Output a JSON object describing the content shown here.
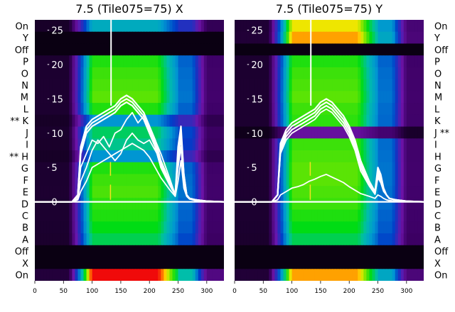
{
  "chart_data": [
    {
      "type": "heatmap",
      "title": "7.5 (Tile075=75) X",
      "rows_top_to_bottom": [
        {
          "label": "On",
          "level": 0.55
        },
        {
          "label": "Y",
          "level": 0.0
        },
        {
          "label": "Off",
          "level": 0.0
        },
        {
          "label": "P",
          "level": 0.72
        },
        {
          "label": "O",
          "level": 0.74
        },
        {
          "label": "N",
          "level": 0.75
        },
        {
          "label": "M",
          "level": 0.76
        },
        {
          "label": "L",
          "level": 0.72
        },
        {
          "label": "** K",
          "level": 0.5
        },
        {
          "label": "J",
          "level": 0.65
        },
        {
          "label": "I",
          "level": 0.62
        },
        {
          "label": "** H",
          "level": 0.5
        },
        {
          "label": "G",
          "level": 0.72
        },
        {
          "label": "F",
          "level": 0.74
        },
        {
          "label": "E",
          "level": 0.75
        },
        {
          "label": "D",
          "level": 0.73
        },
        {
          "label": "C",
          "level": 0.72
        },
        {
          "label": "B",
          "level": 0.7
        },
        {
          "label": "A",
          "level": 0.66
        },
        {
          "label": "Off",
          "level": 0.0
        },
        {
          "label": "X",
          "level": 0.0
        },
        {
          "label": "On",
          "level": 1.0
        }
      ],
      "x_ticks": [
        0,
        50,
        100,
        150,
        200,
        250,
        300
      ],
      "xlim": [
        0,
        330
      ],
      "y_ticks": [
        0,
        5,
        10,
        15,
        20,
        25
      ],
      "ylim": [
        -11.5,
        26.5
      ],
      "series": [
        {
          "x": [
            0,
            65,
            75,
            80,
            90,
            100,
            110,
            120,
            130,
            140,
            150,
            160,
            170,
            180,
            190,
            200,
            210,
            220,
            235,
            245,
            250,
            255,
            260,
            265,
            270,
            280,
            300,
            330
          ],
          "y": [
            0,
            0,
            1,
            8,
            11,
            12,
            12.5,
            13,
            13.5,
            14,
            15,
            15.5,
            15,
            14,
            13,
            11,
            9,
            6,
            3,
            1,
            8,
            11,
            4,
            1,
            0.5,
            0.3,
            0.1,
            0
          ]
        },
        {
          "x": [
            0,
            65,
            75,
            80,
            90,
            100,
            110,
            120,
            130,
            140,
            150,
            160,
            170,
            180,
            190,
            200,
            210,
            220,
            235,
            245,
            250,
            255,
            260,
            265,
            270,
            280,
            300,
            330
          ],
          "y": [
            0,
            0,
            1,
            7.5,
            10.5,
            11.5,
            12,
            12.5,
            13,
            13.5,
            14.5,
            15,
            14.5,
            13.5,
            12.5,
            10.5,
            8.5,
            5.5,
            2.8,
            1,
            7,
            10,
            4,
            1,
            0.5,
            0.3,
            0.1,
            0
          ]
        },
        {
          "x": [
            0,
            65,
            75,
            80,
            90,
            100,
            110,
            120,
            130,
            140,
            150,
            160,
            170,
            180,
            190,
            200,
            210,
            220,
            235,
            245,
            250,
            255,
            260,
            265,
            270,
            280,
            300,
            330
          ],
          "y": [
            0,
            0,
            1,
            7,
            10,
            11,
            11.5,
            12,
            12.5,
            13,
            14,
            14.5,
            14,
            13,
            12,
            10,
            8,
            5,
            2.5,
            1,
            6,
            9.5,
            3.5,
            1,
            0.5,
            0.3,
            0.1,
            0
          ]
        },
        {
          "x": [
            0,
            65,
            75,
            80,
            90,
            100,
            110,
            120,
            130,
            140,
            150,
            160,
            170,
            180,
            190,
            200,
            210,
            220,
            235,
            245,
            250,
            255,
            260,
            265,
            270,
            280,
            300,
            330
          ],
          "y": [
            0,
            0,
            0.8,
            5,
            7,
            9,
            8.5,
            9.5,
            8,
            10,
            10.5,
            12,
            13,
            11.5,
            12.5,
            11,
            9,
            7,
            3.5,
            1,
            7,
            10,
            3,
            1,
            0.5,
            0.3,
            0.1,
            0
          ]
        },
        {
          "x": [
            0,
            65,
            75,
            80,
            90,
            100,
            110,
            120,
            130,
            140,
            150,
            160,
            170,
            180,
            190,
            200,
            210,
            220,
            235,
            245,
            250,
            255,
            260,
            265,
            270,
            280,
            300,
            330
          ],
          "y": [
            0,
            0,
            0.5,
            3,
            5,
            7.5,
            9,
            8,
            7,
            6,
            7,
            9,
            10,
            9,
            8.5,
            9,
            7.5,
            6,
            3,
            1,
            5,
            8,
            2.5,
            1,
            0.5,
            0.3,
            0.1,
            0
          ]
        },
        {
          "x": [
            0,
            65,
            75,
            80,
            90,
            100,
            110,
            120,
            130,
            140,
            150,
            160,
            170,
            180,
            190,
            200,
            210,
            220,
            235,
            245,
            250,
            255,
            260,
            265,
            270,
            280,
            300,
            330
          ],
          "y": [
            0,
            0,
            0.3,
            1.5,
            3,
            5,
            5.5,
            6,
            6.5,
            7,
            7.5,
            8,
            8.5,
            8,
            7.5,
            6.5,
            5,
            3.5,
            1.8,
            0.8,
            3,
            6,
            2,
            0.8,
            0.4,
            0.2,
            0.1,
            0
          ]
        }
      ]
    },
    {
      "type": "heatmap",
      "title": "7.5 (Tile075=75) Y",
      "rows_top_to_bottom": [
        {
          "label": "On",
          "level": 0.85
        },
        {
          "label": "Y",
          "level": 0.9
        },
        {
          "label": "Off",
          "level": 0.0
        },
        {
          "label": "P",
          "level": 0.72
        },
        {
          "label": "O",
          "level": 0.74
        },
        {
          "label": "N",
          "level": 0.75
        },
        {
          "label": "M",
          "level": 0.76
        },
        {
          "label": "L",
          "level": 0.74
        },
        {
          "label": "K",
          "level": 0.73
        },
        {
          "label": "J **",
          "level": 0.2
        },
        {
          "label": "I",
          "level": 0.74
        },
        {
          "label": "H",
          "level": 0.75
        },
        {
          "label": "G",
          "level": 0.76
        },
        {
          "label": "F",
          "level": 0.76
        },
        {
          "label": "E",
          "level": 0.75
        },
        {
          "label": "D",
          "level": 0.74
        },
        {
          "label": "C",
          "level": 0.72
        },
        {
          "label": "B",
          "level": 0.7
        },
        {
          "label": "A",
          "level": 0.66
        },
        {
          "label": "Off",
          "level": 0.0
        },
        {
          "label": "X",
          "level": 0.0
        },
        {
          "label": "On",
          "level": 0.9
        }
      ],
      "x_ticks": [
        0,
        50,
        100,
        150,
        200,
        250,
        300
      ],
      "xlim": [
        0,
        330
      ],
      "y_ticks": [
        0,
        5,
        10,
        15,
        20,
        25
      ],
      "ylim": [
        -11.5,
        26.5
      ],
      "series": [
        {
          "x": [
            0,
            65,
            75,
            80,
            90,
            100,
            110,
            120,
            130,
            140,
            150,
            160,
            170,
            180,
            190,
            200,
            210,
            220,
            235,
            245,
            250,
            255,
            260,
            265,
            270,
            280,
            300,
            330
          ],
          "y": [
            0,
            0,
            1,
            8.5,
            10.5,
            11.5,
            12,
            12.5,
            13,
            13.5,
            14.5,
            15,
            14.5,
            13.5,
            12.5,
            11,
            9,
            6,
            3,
            1.5,
            5,
            4,
            2,
            1,
            0.5,
            0.3,
            0.1,
            0
          ]
        },
        {
          "x": [
            0,
            65,
            75,
            80,
            90,
            100,
            110,
            120,
            130,
            140,
            150,
            160,
            170,
            180,
            190,
            200,
            210,
            220,
            235,
            245,
            250,
            255,
            260,
            265,
            270,
            280,
            300,
            330
          ],
          "y": [
            0,
            0,
            1,
            8,
            10,
            11,
            11.5,
            12,
            12.5,
            13,
            14,
            14.5,
            14,
            13,
            12,
            10.5,
            8.5,
            5.5,
            2.8,
            1.3,
            4.5,
            3.5,
            1.8,
            1,
            0.5,
            0.3,
            0.1,
            0
          ]
        },
        {
          "x": [
            0,
            65,
            75,
            80,
            90,
            100,
            110,
            120,
            130,
            140,
            150,
            160,
            170,
            180,
            190,
            200,
            210,
            220,
            235,
            245,
            250,
            255,
            260,
            265,
            270,
            280,
            300,
            330
          ],
          "y": [
            0,
            0,
            1,
            7.5,
            9.5,
            10.5,
            11,
            11.5,
            12,
            12.5,
            13.5,
            14,
            13.5,
            12.5,
            11.5,
            10,
            8,
            5,
            2.5,
            1.2,
            4,
            3,
            1.6,
            1,
            0.5,
            0.3,
            0.1,
            0
          ]
        },
        {
          "x": [
            0,
            65,
            75,
            80,
            90,
            100,
            110,
            120,
            130,
            140,
            150,
            160,
            170,
            180,
            190,
            200,
            210,
            220,
            235,
            245,
            250,
            255,
            260,
            265,
            270,
            280,
            300,
            330
          ],
          "y": [
            0,
            0,
            1,
            7,
            9,
            10,
            10.5,
            11,
            11.5,
            12,
            13,
            13.5,
            13,
            12,
            11,
            9.5,
            7.5,
            4.5,
            2.3,
            1.1,
            3.5,
            2.8,
            1.5,
            1,
            0.5,
            0.3,
            0.1,
            0
          ]
        },
        {
          "x": [
            0,
            65,
            75,
            80,
            90,
            100,
            110,
            120,
            130,
            140,
            150,
            160,
            170,
            180,
            190,
            200,
            210,
            220,
            235,
            245,
            250,
            255,
            260,
            265,
            270,
            280,
            300,
            330
          ],
          "y": [
            0,
            0,
            0.3,
            1,
            1.5,
            2,
            2.2,
            2.5,
            3,
            3.3,
            3.7,
            4,
            3.6,
            3.2,
            2.8,
            2.2,
            1.7,
            1.2,
            0.8,
            0.5,
            1,
            0.8,
            0.5,
            0.3,
            0.2,
            0.1,
            0,
            0
          ]
        }
      ]
    }
  ]
}
